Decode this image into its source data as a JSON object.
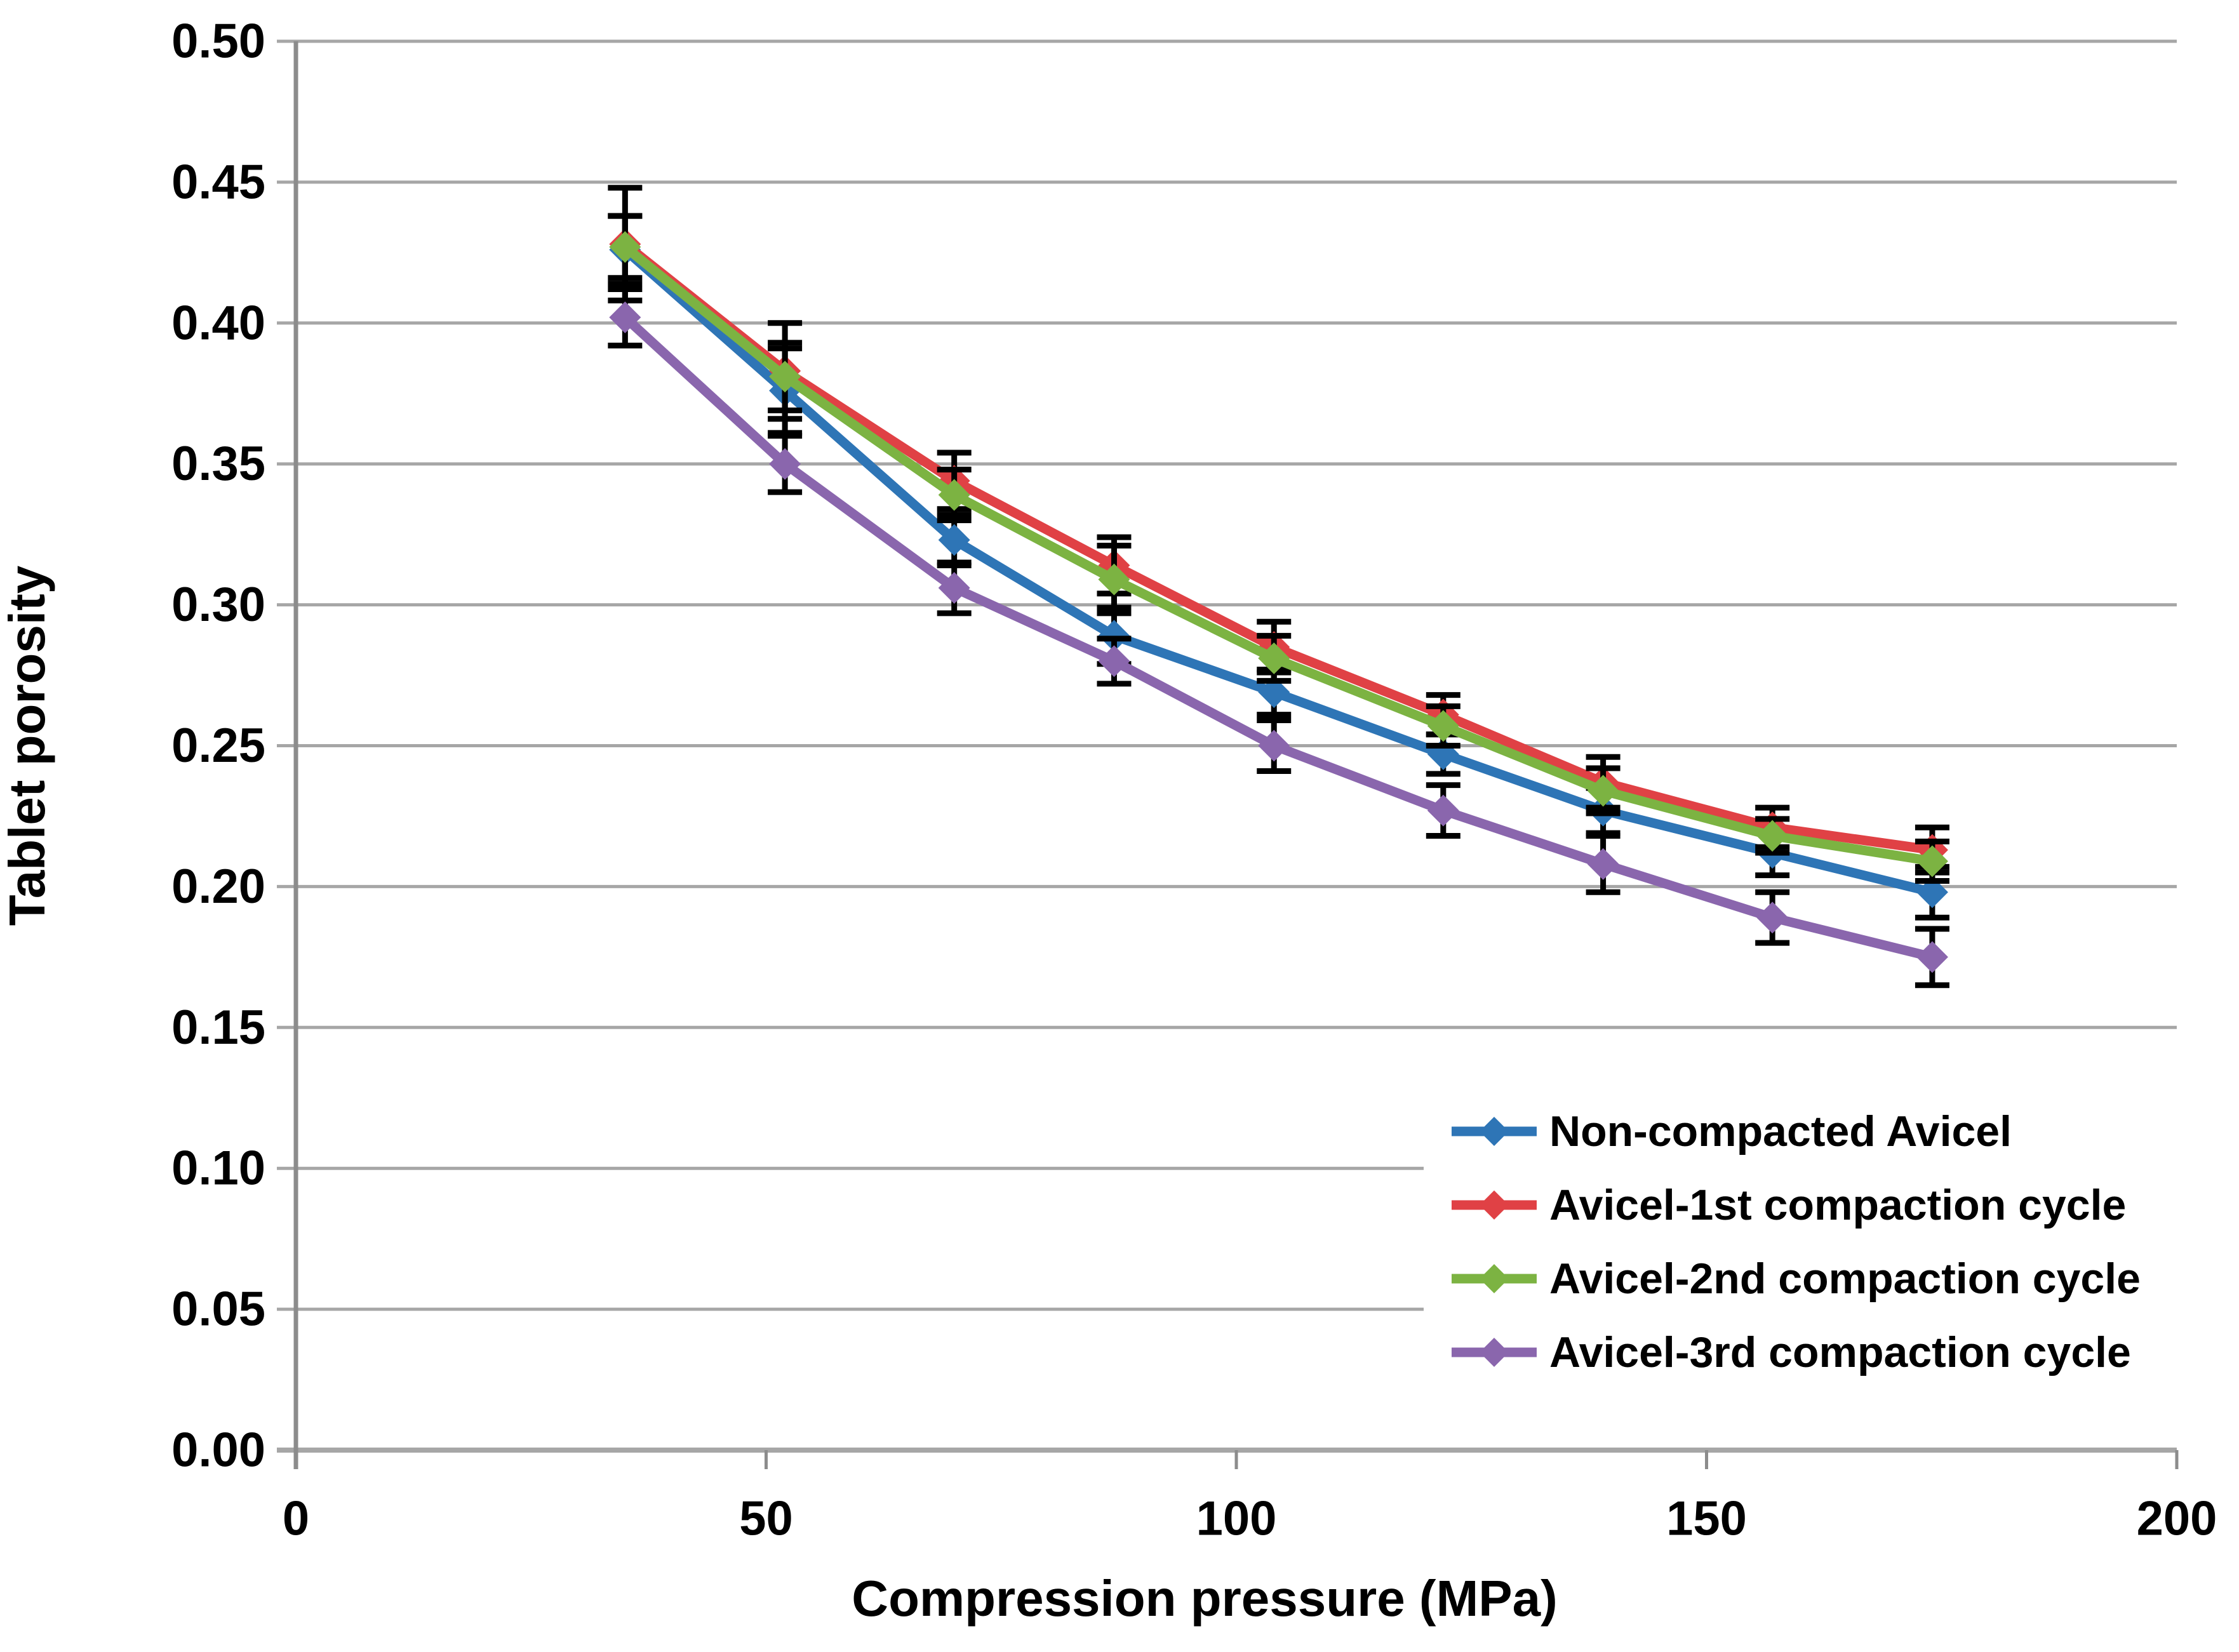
{
  "chart_data": {
    "type": "line",
    "title": "",
    "xlabel": "Compression  pressure (MPa)",
    "ylabel": "Tablet porosity",
    "x": [
      35,
      52,
      70,
      87,
      104,
      122,
      139,
      157,
      174
    ],
    "xlim": [
      0,
      200
    ],
    "ylim": [
      0,
      0.5
    ],
    "x_ticks": [
      0,
      50,
      100,
      150,
      200
    ],
    "x_tick_labels": [
      "0",
      "50",
      "100",
      "150",
      "200"
    ],
    "y_ticks": [
      0,
      0.05,
      0.1,
      0.15,
      0.2,
      0.25,
      0.3,
      0.35,
      0.4,
      0.45,
      0.5
    ],
    "y_tick_labels": [
      "0.00",
      "0.05",
      "0.10",
      "0.15",
      "0.20",
      "0.25",
      "0.30",
      "0.35",
      "0.40",
      "0.45",
      "0.50"
    ],
    "grid": "horizontal",
    "legend_position": "inside-bottom-right",
    "marker": "diamond",
    "error_bars": true,
    "grid_color": "#A6A6A6",
    "axis_color": "#8C8C8C",
    "error_bar_color": "#000000",
    "text_color": "#000000",
    "series": [
      {
        "name": "Non-compacted Avicel",
        "color": "#2E75B6",
        "values": [
          0.426,
          0.376,
          0.323,
          0.289,
          0.269,
          0.247,
          0.227,
          0.212,
          0.198
        ],
        "errors": [
          0.012,
          0.015,
          0.009,
          0.01,
          0.008,
          0.007,
          0.008,
          0.008,
          0.009
        ]
      },
      {
        "name": "Avicel-1st compaction cycle",
        "color": "#E04145",
        "values": [
          0.428,
          0.383,
          0.344,
          0.314,
          0.285,
          0.261,
          0.237,
          0.221,
          0.213
        ],
        "errors": [
          0.02,
          0.017,
          0.01,
          0.01,
          0.009,
          0.007,
          0.009,
          0.007,
          0.008
        ]
      },
      {
        "name": "Avicel-2nd compaction cycle",
        "color": "#7CB342",
        "values": [
          0.427,
          0.381,
          0.339,
          0.309,
          0.281,
          0.257,
          0.234,
          0.218,
          0.209
        ],
        "errors": [
          0.011,
          0.012,
          0.009,
          0.012,
          0.008,
          0.007,
          0.008,
          0.006,
          0.007
        ]
      },
      {
        "name": "Avicel-3rd compaction cycle",
        "color": "#8A66AD",
        "values": [
          0.402,
          0.35,
          0.306,
          0.28,
          0.25,
          0.227,
          0.208,
          0.189,
          0.175
        ],
        "errors": [
          0.01,
          0.01,
          0.009,
          0.008,
          0.009,
          0.009,
          0.01,
          0.009,
          0.01
        ]
      }
    ]
  }
}
